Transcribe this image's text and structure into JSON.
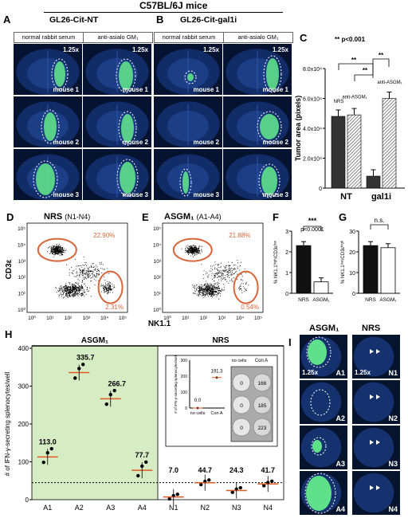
{
  "figure_title": "C57BL/6J mice",
  "panels": {
    "A": {
      "letter": "A",
      "title": "GL26-Cit-NT",
      "col_left": "normal rabbit serum",
      "col_right": "anti-asialo GM₁",
      "zoom": "1.25x",
      "mice": [
        "mouse 1",
        "mouse 2",
        "mouse 3"
      ]
    },
    "B": {
      "letter": "B",
      "title": "GL26-Cit-gal1i",
      "col_left": "normal rabbit serum",
      "col_right": "anti-asialo GM₁",
      "zoom": "1.25x",
      "mice": [
        "mouse 1",
        "mouse 2",
        "mouse 3"
      ]
    },
    "C": {
      "letter": "C"
    },
    "D": {
      "letter": "D",
      "title": "NRS",
      "subtitle": "(N1-N4)",
      "gate_top": "22.90%",
      "gate_bottom": "2.31%"
    },
    "E": {
      "letter": "E",
      "title": "ASGM₁",
      "subtitle": "(A1-A4)",
      "gate_top": "21.88%",
      "gate_bottom": "0.54%"
    },
    "DE_axes": {
      "ylabel": "CD3ε",
      "xlabel": "NK1.1",
      "yticks": [
        "10⁵",
        "10⁴",
        "10³",
        "10²",
        "10¹",
        "10⁰"
      ],
      "xticks": [
        "10⁰",
        "10¹",
        "10²",
        "10³",
        "10⁴",
        "10⁵"
      ]
    },
    "F": {
      "letter": "F"
    },
    "G": {
      "letter": "G"
    },
    "H": {
      "letter": "H",
      "group_a": "ASGM₁",
      "group_b": "NRS",
      "inset_table": {
        "col1": "no cells",
        "col2": "Con A",
        "values_left": [
          "0",
          "0",
          "0"
        ],
        "values_right": [
          "166",
          "185",
          "223"
        ]
      }
    },
    "I": {
      "letter": "I",
      "col_left": "ASGM₁",
      "col_right": "NRS",
      "zoom": "1.25x",
      "left_labels": [
        "A1",
        "A2",
        "A3",
        "A4"
      ],
      "right_labels": [
        "N1",
        "N2",
        "N3",
        "N4"
      ]
    }
  },
  "colors": {
    "tumor": "#5fe08a",
    "tissue": "#0b1d4a",
    "gate": "#d9663a",
    "bar_black": "#1a1a1a",
    "bar_hatch": "#888888",
    "green_bg": "#d6ecc4",
    "median": "#e05a20"
  },
  "chart_data": [
    {
      "panel": "C",
      "type": "bar",
      "ylabel": "Tumor area (pixels)",
      "yticks": [
        "0",
        "2.0x10⁴",
        "4.0x10⁴",
        "6.0x10⁴",
        "8.0x10⁴"
      ],
      "ylim": [
        0,
        80000
      ],
      "categories": [
        "NT",
        "gal1i"
      ],
      "series": [
        {
          "name": "NRS",
          "values": [
            48000,
            8000
          ]
        },
        {
          "name": "anti-ASGM₁",
          "values": [
            49000,
            60000
          ]
        }
      ],
      "bar_labels": [
        "NRS",
        "anti-ASGM₁",
        "anti-ASGM₁"
      ],
      "annotations": [
        "** p<0.001",
        "**",
        "**",
        "**"
      ]
    },
    {
      "panel": "F",
      "type": "bar",
      "ylabel": "% NK1.1ʰⁱᵍʰ/CD3εˡᵒʷ",
      "yticks": [
        "0",
        "1",
        "2",
        "3"
      ],
      "ylim": [
        0,
        3
      ],
      "categories": [
        "NRS",
        "ASGM₁"
      ],
      "values": [
        2.3,
        0.55
      ],
      "annotations": [
        "***",
        "p<0.0001"
      ]
    },
    {
      "panel": "G",
      "type": "bar",
      "ylabel": "% NK1.1ˡᵒʷ/CD3εʰⁱᵍʰ",
      "yticks": [
        "0",
        "10",
        "20",
        "30"
      ],
      "ylim": [
        0,
        30
      ],
      "categories": [
        "NRS",
        "ASGM₁"
      ],
      "values": [
        23,
        22
      ],
      "annotations": [
        "n.s."
      ]
    },
    {
      "panel": "H",
      "type": "scatter",
      "ylabel": "# of IFN-γ-secreting splenocytes/well",
      "yticks": [
        "0",
        "100",
        "200",
        "300",
        "400"
      ],
      "ylim": [
        0,
        400
      ],
      "categories": [
        "A1",
        "A2",
        "A3",
        "A4",
        "N1",
        "N2",
        "N3",
        "N4"
      ],
      "values": [
        113.0,
        335.7,
        266.7,
        77.7,
        7.0,
        44.7,
        24.3,
        41.7
      ],
      "value_labels": [
        "113.0",
        "335.7",
        "266.7",
        "77.7",
        "7.0",
        "44.7",
        "24.3",
        "41.7"
      ],
      "inset": {
        "ylabel": "# of IFN-γ-secreting splenocytes/well",
        "yticks": [
          "0",
          "100",
          "200",
          "300"
        ],
        "categories": [
          "no cells",
          "Con A"
        ],
        "values": [
          0.0,
          191.3
        ],
        "value_labels": [
          "0.0",
          "191.3"
        ]
      }
    }
  ]
}
